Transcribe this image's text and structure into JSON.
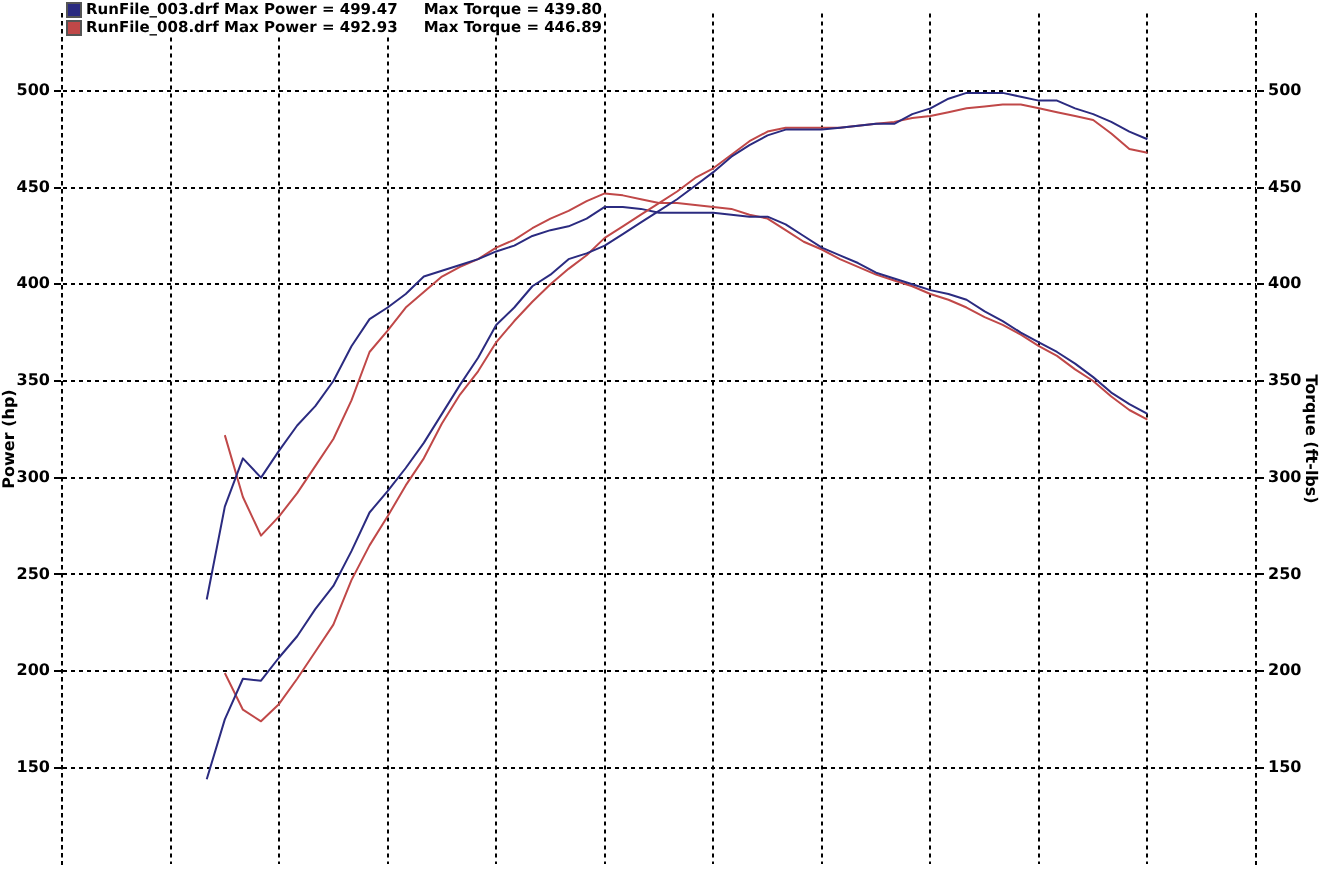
{
  "chart_data": {
    "type": "line",
    "ylabel": "Power (hp)",
    "y2label": "Torque (ft-lbs)",
    "categories": [
      null,
      null,
      null,
      null,
      null,
      null,
      null,
      null,
      null,
      null,
      null,
      null,
      null,
      null,
      null,
      null,
      null,
      null,
      null,
      null,
      null,
      null,
      null,
      null,
      null,
      null,
      null,
      null,
      null,
      null,
      null,
      null,
      null,
      null,
      null,
      null,
      null,
      null,
      null,
      null,
      null,
      null,
      null,
      null,
      null,
      null,
      null,
      null,
      null,
      null,
      null,
      null,
      null,
      null,
      null,
      null,
      null,
      null,
      null,
      null,
      null,
      null,
      null,
      null,
      null,
      null,
      null
    ],
    "series": [
      {
        "name": "RunFile_003.drf Max Power = 499.47     Max Torque = 439.80",
        "color": "#2b2b80",
        "values": [
          null,
          null,
          null,
          null,
          null,
          null,
          null,
          null,
          144,
          175,
          196,
          195,
          207,
          218,
          232,
          244,
          262,
          282,
          293,
          305,
          318,
          333,
          348,
          362,
          379,
          388,
          399,
          405,
          413,
          416,
          420,
          426,
          432,
          438,
          444,
          451,
          458,
          466,
          472,
          477,
          480,
          480,
          480,
          481,
          482,
          483,
          483,
          488,
          491,
          496,
          499,
          499,
          499,
          497,
          495,
          495,
          491,
          488,
          484,
          479,
          475,
          null,
          null,
          null,
          null,
          null,
          null
        ]
      },
      {
        "name": "RunFile_008.drf Max Power = 492.93     Max Torque = 446.89",
        "color": "#c04848",
        "values": [
          null,
          null,
          null,
          null,
          null,
          null,
          null,
          null,
          null,
          199,
          180,
          174,
          183,
          196,
          210,
          224,
          247,
          265,
          280,
          296,
          310,
          328,
          343,
          355,
          370,
          381,
          391,
          400,
          408,
          415,
          424,
          430,
          436,
          442,
          448,
          455,
          460,
          467,
          474,
          479,
          481,
          481,
          481,
          481,
          482,
          483,
          484,
          486,
          487,
          489,
          491,
          492,
          493,
          493,
          491,
          489,
          487,
          485,
          478,
          470,
          468,
          null,
          null,
          null,
          null,
          null,
          null
        ]
      },
      {
        "color": "#2b2b80",
        "values": [
          null,
          null,
          null,
          null,
          null,
          null,
          null,
          null,
          237,
          285,
          310,
          300,
          314,
          327,
          337,
          350,
          368,
          382,
          388,
          395,
          404,
          407,
          410,
          413,
          417,
          420,
          425,
          428,
          430,
          434,
          440,
          440,
          439,
          437,
          437,
          437,
          437,
          436,
          435,
          435,
          431,
          425,
          419,
          415,
          411,
          406,
          403,
          400,
          397,
          395,
          392,
          386,
          381,
          375,
          370,
          365,
          359,
          352,
          344,
          338,
          333,
          null,
          null,
          null,
          null,
          null,
          null
        ]
      },
      {
        "color": "#c04848",
        "values": [
          null,
          null,
          null,
          null,
          null,
          null,
          null,
          null,
          null,
          322,
          290,
          270,
          280,
          292,
          306,
          320,
          340,
          365,
          376,
          388,
          396,
          404,
          409,
          413,
          419,
          423,
          429,
          434,
          438,
          443,
          447,
          446,
          444,
          442,
          442,
          441,
          440,
          439,
          436,
          434,
          428,
          422,
          418,
          413,
          409,
          405,
          402,
          399,
          395,
          392,
          388,
          383,
          379,
          374,
          368,
          363,
          356,
          350,
          342,
          335,
          330,
          null,
          null,
          null,
          null,
          null,
          null
        ]
      }
    ],
    "ylim": [
      100,
      540
    ],
    "yticks": [
      150,
      200,
      250,
      300,
      350,
      400,
      450,
      500
    ],
    "y2lim": [
      100,
      540
    ],
    "y2ticks": [
      150,
      200,
      250,
      300,
      350,
      400,
      450,
      500
    ],
    "grid": true,
    "legend": "top left",
    "marker": "none",
    "line_style": "solid"
  }
}
